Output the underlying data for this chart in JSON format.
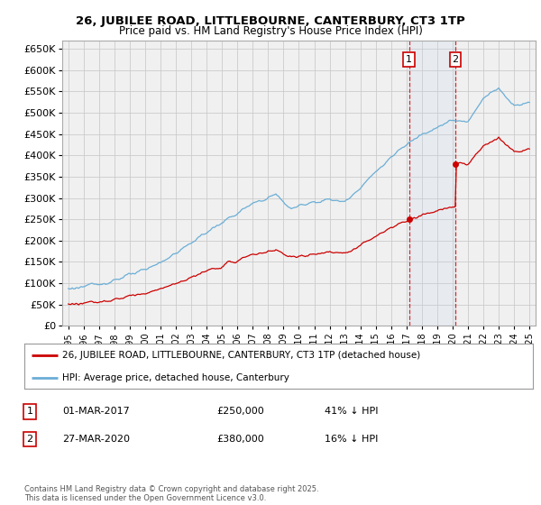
{
  "title": "26, JUBILEE ROAD, LITTLEBOURNE, CANTERBURY, CT3 1TP",
  "subtitle": "Price paid vs. HM Land Registry's House Price Index (HPI)",
  "hpi_color": "#6baed6",
  "price_color": "#cc0000",
  "vline_color": "#cc0000",
  "shade_color": "#c6dbef",
  "background_color": "#f0f0f0",
  "grid_color": "#cccccc",
  "ylim": [
    0,
    670000
  ],
  "yticks": [
    0,
    50000,
    100000,
    150000,
    200000,
    250000,
    300000,
    350000,
    400000,
    450000,
    500000,
    550000,
    600000,
    650000
  ],
  "sale1_year": 2017.17,
  "sale1_price": 250000,
  "sale2_year": 2020.17,
  "sale2_price": 380000,
  "sale1_label": "1",
  "sale2_label": "2",
  "legend_line1": "26, JUBILEE ROAD, LITTLEBOURNE, CANTERBURY, CT3 1TP (detached house)",
  "legend_line2": "HPI: Average price, detached house, Canterbury",
  "annotation1_num": "1",
  "annotation1_date": "01-MAR-2017",
  "annotation1_price": "£250,000",
  "annotation1_hpi": "41% ↓ HPI",
  "annotation2_num": "2",
  "annotation2_date": "27-MAR-2020",
  "annotation2_price": "£380,000",
  "annotation2_hpi": "16% ↓ HPI",
  "footer": "Contains HM Land Registry data © Crown copyright and database right 2025.\nThis data is licensed under the Open Government Licence v3.0.",
  "xstart": 1995,
  "xend": 2025
}
